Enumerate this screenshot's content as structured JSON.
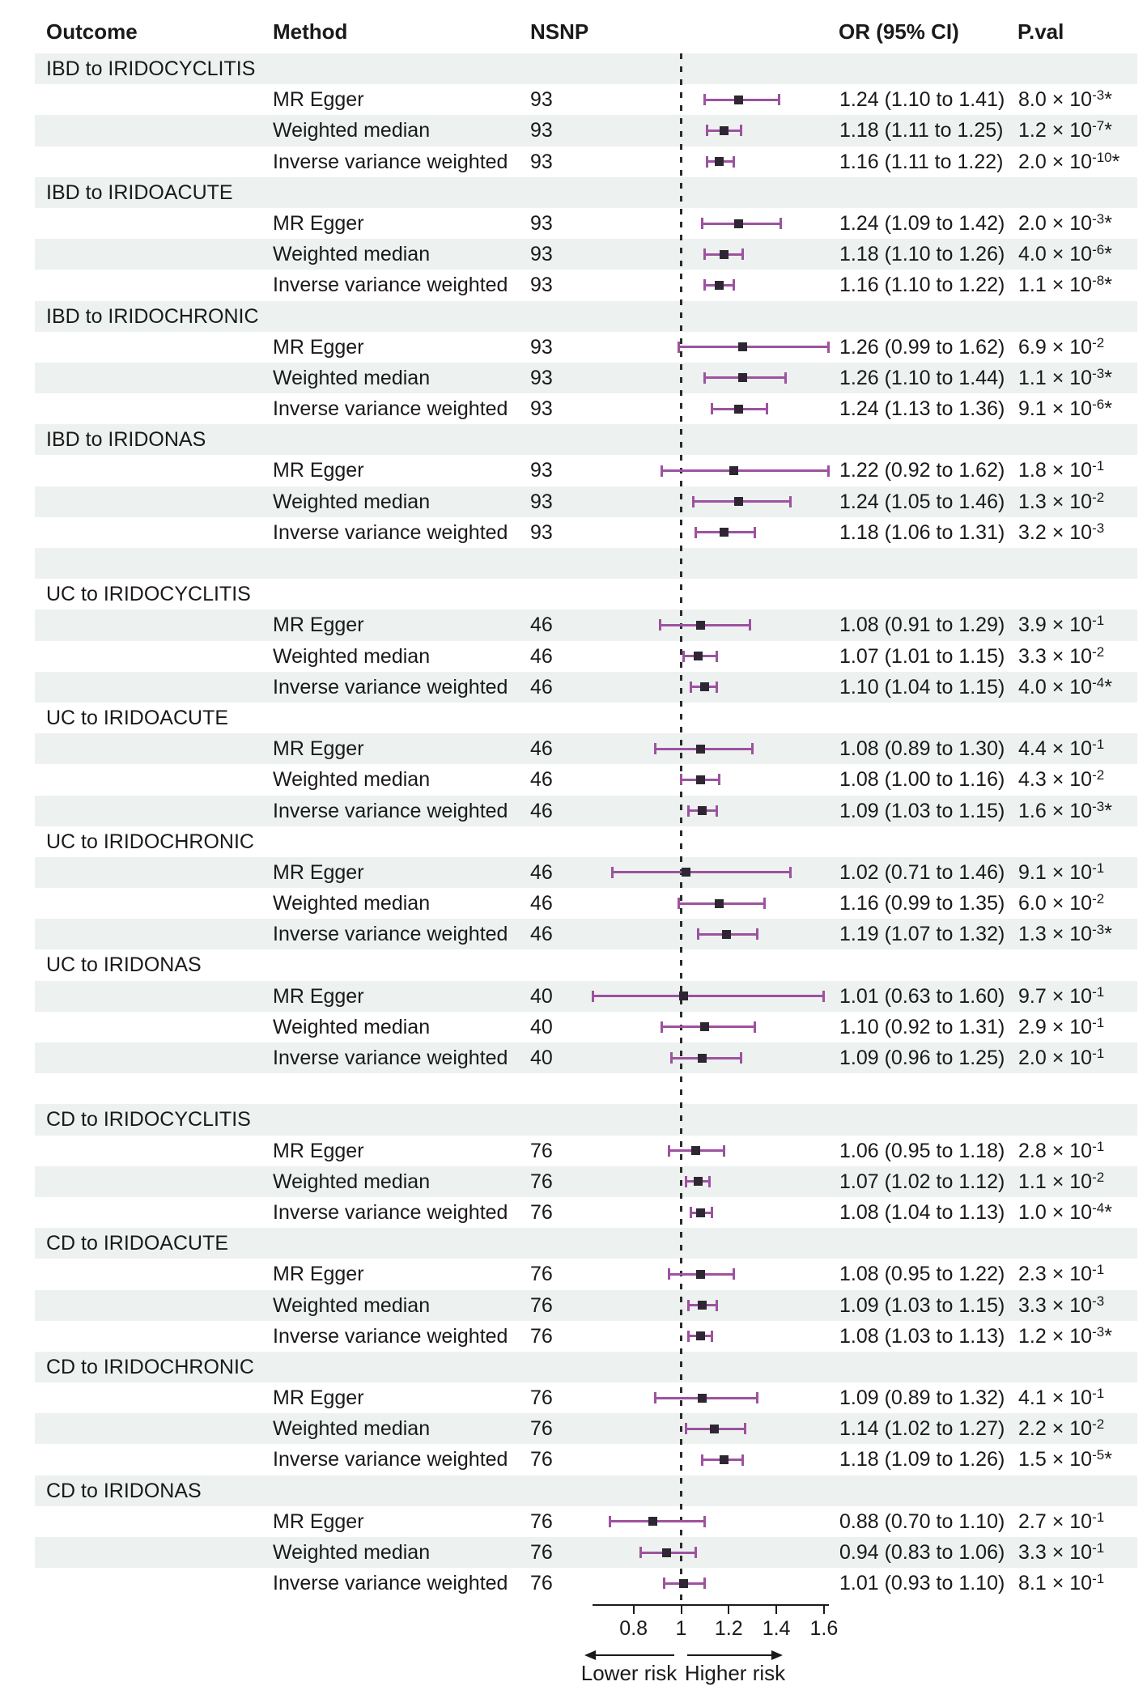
{
  "chart_data": {
    "type": "forest",
    "columns": [
      "Outcome",
      "Method",
      "NSNP",
      "OR (95% CI)",
      "P.val"
    ],
    "x_axis": {
      "tick_labels": [
        "0.8",
        "1",
        "1.2",
        "1.4",
        "1.6"
      ],
      "tick_values": [
        0.8,
        1,
        1.2,
        1.4,
        1.6
      ],
      "reference_line": 1,
      "range": [
        0.63,
        1.62
      ],
      "grid": false
    },
    "direction_labels": {
      "lower": "Lower risk",
      "higher": "Higher risk"
    },
    "colors": {
      "ci_bar": "#9d52a0",
      "marker": "#2e2733",
      "stripe": "#edf1f0",
      "text": "#1a1a1a"
    },
    "groups": [
      {
        "outcome": "IBD to IRIDOCYCLITIS",
        "spacer_after": false,
        "rows": [
          {
            "method": "MR Egger",
            "nsnp": "93",
            "or": 1.24,
            "lo": 1.1,
            "hi": 1.41,
            "or_text": "1.24 (1.10 to 1.41)",
            "p": {
              "m": "8.0",
              "e": "-3",
              "s": true
            }
          },
          {
            "method": "Weighted median",
            "nsnp": "93",
            "or": 1.18,
            "lo": 1.11,
            "hi": 1.25,
            "or_text": "1.18 (1.11 to 1.25)",
            "p": {
              "m": "1.2",
              "e": "-7",
              "s": true
            }
          },
          {
            "method": "Inverse variance weighted",
            "nsnp": "93",
            "or": 1.16,
            "lo": 1.11,
            "hi": 1.22,
            "or_text": "1.16 (1.11 to 1.22)",
            "p": {
              "m": "2.0",
              "e": "-10",
              "s": true
            }
          }
        ]
      },
      {
        "outcome": "IBD to IRIDOACUTE",
        "spacer_after": false,
        "rows": [
          {
            "method": "MR Egger",
            "nsnp": "93",
            "or": 1.24,
            "lo": 1.09,
            "hi": 1.42,
            "or_text": "1.24 (1.09 to 1.42)",
            "p": {
              "m": "2.0",
              "e": "-3",
              "s": true
            }
          },
          {
            "method": "Weighted median",
            "nsnp": "93",
            "or": 1.18,
            "lo": 1.1,
            "hi": 1.26,
            "or_text": "1.18 (1.10 to 1.26)",
            "p": {
              "m": "4.0",
              "e": "-6",
              "s": true
            }
          },
          {
            "method": "Inverse variance weighted",
            "nsnp": "93",
            "or": 1.16,
            "lo": 1.1,
            "hi": 1.22,
            "or_text": "1.16 (1.10 to 1.22)",
            "p": {
              "m": "1.1",
              "e": "-8",
              "s": true
            }
          }
        ]
      },
      {
        "outcome": "IBD to IRIDOCHRONIC",
        "spacer_after": false,
        "rows": [
          {
            "method": "MR Egger",
            "nsnp": "93",
            "or": 1.26,
            "lo": 0.99,
            "hi": 1.62,
            "or_text": "1.26 (0.99 to 1.62)",
            "p": {
              "m": "6.9",
              "e": "-2",
              "s": false
            }
          },
          {
            "method": "Weighted median",
            "nsnp": "93",
            "or": 1.26,
            "lo": 1.1,
            "hi": 1.44,
            "or_text": "1.26 (1.10 to 1.44)",
            "p": {
              "m": "1.1",
              "e": "-3",
              "s": true
            }
          },
          {
            "method": "Inverse variance weighted",
            "nsnp": "93",
            "or": 1.24,
            "lo": 1.13,
            "hi": 1.36,
            "or_text": "1.24 (1.13 to 1.36)",
            "p": {
              "m": "9.1",
              "e": "-6",
              "s": true
            }
          }
        ]
      },
      {
        "outcome": "IBD to IRIDONAS",
        "spacer_after": true,
        "rows": [
          {
            "method": "MR Egger",
            "nsnp": "93",
            "or": 1.22,
            "lo": 0.92,
            "hi": 1.62,
            "or_text": "1.22 (0.92 to 1.62)",
            "p": {
              "m": "1.8",
              "e": "-1",
              "s": false
            }
          },
          {
            "method": "Weighted median",
            "nsnp": "93",
            "or": 1.24,
            "lo": 1.05,
            "hi": 1.46,
            "or_text": "1.24 (1.05 to 1.46)",
            "p": {
              "m": "1.3",
              "e": "-2",
              "s": false
            }
          },
          {
            "method": "Inverse variance weighted",
            "nsnp": "93",
            "or": 1.18,
            "lo": 1.06,
            "hi": 1.31,
            "or_text": "1.18 (1.06 to 1.31)",
            "p": {
              "m": "3.2",
              "e": "-3",
              "s": false
            }
          }
        ]
      },
      {
        "outcome": "UC to IRIDOCYCLITIS",
        "spacer_after": false,
        "rows": [
          {
            "method": "MR Egger",
            "nsnp": "46",
            "or": 1.08,
            "lo": 0.91,
            "hi": 1.29,
            "or_text": "1.08 (0.91 to 1.29)",
            "p": {
              "m": "3.9",
              "e": "-1",
              "s": false
            }
          },
          {
            "method": "Weighted median",
            "nsnp": "46",
            "or": 1.07,
            "lo": 1.01,
            "hi": 1.15,
            "or_text": "1.07 (1.01 to 1.15)",
            "p": {
              "m": "3.3",
              "e": "-2",
              "s": false
            }
          },
          {
            "method": "Inverse variance weighted",
            "nsnp": "46",
            "or": 1.1,
            "lo": 1.04,
            "hi": 1.15,
            "or_text": "1.10 (1.04 to 1.15)",
            "p": {
              "m": "4.0",
              "e": "-4",
              "s": true
            }
          }
        ]
      },
      {
        "outcome": "UC to IRIDOACUTE",
        "spacer_after": false,
        "rows": [
          {
            "method": "MR Egger",
            "nsnp": "46",
            "or": 1.08,
            "lo": 0.89,
            "hi": 1.3,
            "or_text": "1.08 (0.89 to 1.30)",
            "p": {
              "m": "4.4",
              "e": "-1",
              "s": false
            }
          },
          {
            "method": "Weighted median",
            "nsnp": "46",
            "or": 1.08,
            "lo": 1.0,
            "hi": 1.16,
            "or_text": "1.08 (1.00 to 1.16)",
            "p": {
              "m": "4.3",
              "e": "-2",
              "s": false
            }
          },
          {
            "method": "Inverse variance weighted",
            "nsnp": "46",
            "or": 1.09,
            "lo": 1.03,
            "hi": 1.15,
            "or_text": "1.09 (1.03 to 1.15)",
            "p": {
              "m": "1.6",
              "e": "-3",
              "s": true
            }
          }
        ]
      },
      {
        "outcome": "UC to IRIDOCHRONIC",
        "spacer_after": false,
        "rows": [
          {
            "method": "MR Egger",
            "nsnp": "46",
            "or": 1.02,
            "lo": 0.71,
            "hi": 1.46,
            "or_text": "1.02 (0.71 to 1.46)",
            "p": {
              "m": "9.1",
              "e": "-1",
              "s": false
            }
          },
          {
            "method": "Weighted median",
            "nsnp": "46",
            "or": 1.16,
            "lo": 0.99,
            "hi": 1.35,
            "or_text": "1.16 (0.99 to 1.35)",
            "p": {
              "m": "6.0",
              "e": "-2",
              "s": false
            }
          },
          {
            "method": "Inverse variance weighted",
            "nsnp": "46",
            "or": 1.19,
            "lo": 1.07,
            "hi": 1.32,
            "or_text": "1.19 (1.07 to 1.32)",
            "p": {
              "m": "1.3",
              "e": "-3",
              "s": true
            }
          }
        ]
      },
      {
        "outcome": "UC to IRIDONAS",
        "spacer_after": true,
        "rows": [
          {
            "method": "MR Egger",
            "nsnp": "40",
            "or": 1.01,
            "lo": 0.63,
            "hi": 1.6,
            "or_text": "1.01 (0.63 to 1.60)",
            "p": {
              "m": "9.7",
              "e": "-1",
              "s": false
            }
          },
          {
            "method": "Weighted median",
            "nsnp": "40",
            "or": 1.1,
            "lo": 0.92,
            "hi": 1.31,
            "or_text": "1.10 (0.92 to 1.31)",
            "p": {
              "m": "2.9",
              "e": "-1",
              "s": false
            }
          },
          {
            "method": "Inverse variance weighted",
            "nsnp": "40",
            "or": 1.09,
            "lo": 0.96,
            "hi": 1.25,
            "or_text": "1.09 (0.96 to 1.25)",
            "p": {
              "m": "2.0",
              "e": "-1",
              "s": false
            }
          }
        ]
      },
      {
        "outcome": "CD to IRIDOCYCLITIS",
        "spacer_after": false,
        "rows": [
          {
            "method": "MR Egger",
            "nsnp": "76",
            "or": 1.06,
            "lo": 0.95,
            "hi": 1.18,
            "or_text": "1.06 (0.95 to 1.18)",
            "p": {
              "m": "2.8",
              "e": "-1",
              "s": false
            }
          },
          {
            "method": "Weighted median",
            "nsnp": "76",
            "or": 1.07,
            "lo": 1.02,
            "hi": 1.12,
            "or_text": "1.07 (1.02 to 1.12)",
            "p": {
              "m": "1.1",
              "e": "-2",
              "s": false
            }
          },
          {
            "method": "Inverse variance weighted",
            "nsnp": "76",
            "or": 1.08,
            "lo": 1.04,
            "hi": 1.13,
            "or_text": "1.08 (1.04 to 1.13)",
            "p": {
              "m": "1.0",
              "e": "-4",
              "s": true
            }
          }
        ]
      },
      {
        "outcome": "CD to IRIDOACUTE",
        "spacer_after": false,
        "rows": [
          {
            "method": "MR Egger",
            "nsnp": "76",
            "or": 1.08,
            "lo": 0.95,
            "hi": 1.22,
            "or_text": "1.08 (0.95 to 1.22)",
            "p": {
              "m": "2.3",
              "e": "-1",
              "s": false
            }
          },
          {
            "method": "Weighted median",
            "nsnp": "76",
            "or": 1.09,
            "lo": 1.03,
            "hi": 1.15,
            "or_text": "1.09 (1.03 to 1.15)",
            "p": {
              "m": "3.3",
              "e": "-3",
              "s": false
            }
          },
          {
            "method": "Inverse variance weighted",
            "nsnp": "76",
            "or": 1.08,
            "lo": 1.03,
            "hi": 1.13,
            "or_text": "1.08 (1.03 to 1.13)",
            "p": {
              "m": "1.2",
              "e": "-3",
              "s": true
            }
          }
        ]
      },
      {
        "outcome": "CD to IRIDOCHRONIC",
        "spacer_after": false,
        "rows": [
          {
            "method": "MR Egger",
            "nsnp": "76",
            "or": 1.09,
            "lo": 0.89,
            "hi": 1.32,
            "or_text": "1.09 (0.89 to 1.32)",
            "p": {
              "m": "4.1",
              "e": "-1",
              "s": false
            }
          },
          {
            "method": "Weighted median",
            "nsnp": "76",
            "or": 1.14,
            "lo": 1.02,
            "hi": 1.27,
            "or_text": "1.14 (1.02 to 1.27)",
            "p": {
              "m": "2.2",
              "e": "-2",
              "s": false
            }
          },
          {
            "method": "Inverse variance weighted",
            "nsnp": "76",
            "or": 1.18,
            "lo": 1.09,
            "hi": 1.26,
            "or_text": "1.18 (1.09 to 1.26)",
            "p": {
              "m": "1.5",
              "e": "-5",
              "s": true
            }
          }
        ]
      },
      {
        "outcome": "CD to IRIDONAS",
        "spacer_after": false,
        "rows": [
          {
            "method": "MR Egger",
            "nsnp": "76",
            "or": 0.88,
            "lo": 0.7,
            "hi": 1.1,
            "or_text": "0.88 (0.70 to 1.10)",
            "p": {
              "m": "2.7",
              "e": "-1",
              "s": false
            }
          },
          {
            "method": "Weighted median",
            "nsnp": "76",
            "or": 0.94,
            "lo": 0.83,
            "hi": 1.06,
            "or_text": "0.94 (0.83 to 1.06)",
            "p": {
              "m": "3.3",
              "e": "-1",
              "s": false
            }
          },
          {
            "method": "Inverse variance weighted",
            "nsnp": "76",
            "or": 1.01,
            "lo": 0.93,
            "hi": 1.1,
            "or_text": "1.01 (0.93 to 1.10)",
            "p": {
              "m": "8.1",
              "e": "-1",
              "s": false
            }
          }
        ]
      }
    ]
  }
}
